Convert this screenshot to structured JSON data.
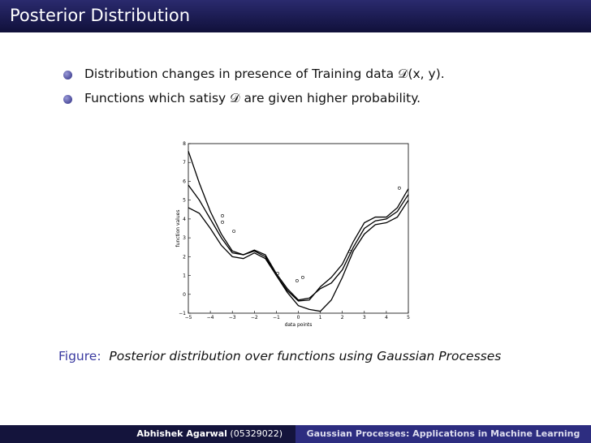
{
  "header": {
    "title": "Posterior Distribution"
  },
  "bullets": [
    "Distribution changes in presence of Training data 𝒟(x, y).",
    "Functions which satisy 𝒟 are given higher probability."
  ],
  "figure": {
    "chart": {
      "type": "line",
      "x_label": "data points",
      "y_label": "function values",
      "x": [
        -5,
        -4.5,
        -4,
        -3.5,
        -3,
        -2.5,
        -2,
        -1.5,
        -1,
        -0.5,
        0,
        0.5,
        1,
        1.5,
        2,
        2.5,
        3,
        3.5,
        4,
        4.5,
        5
      ],
      "series": [
        {
          "color": "#000000",
          "values": [
            7.6,
            5.9,
            4.4,
            3.2,
            2.3,
            2.1,
            2.3,
            2.0,
            1.0,
            0.1,
            -0.6,
            -0.8,
            -0.9,
            -0.3,
            0.9,
            2.3,
            3.2,
            3.7,
            3.8,
            4.1,
            5.0
          ]
        },
        {
          "color": "#000000",
          "values": [
            5.8,
            5.0,
            4.0,
            3.0,
            2.2,
            2.1,
            2.35,
            2.1,
            1.1,
            0.3,
            -0.3,
            -0.2,
            0.3,
            0.6,
            1.3,
            2.5,
            3.5,
            3.9,
            4.0,
            4.4,
            5.3
          ]
        },
        {
          "color": "#000000",
          "values": [
            4.6,
            4.3,
            3.5,
            2.6,
            2.0,
            1.9,
            2.2,
            1.9,
            1.0,
            0.2,
            -0.35,
            -0.3,
            0.4,
            0.9,
            1.6,
            2.8,
            3.8,
            4.1,
            4.1,
            4.6,
            5.6
          ]
        }
      ],
      "points": {
        "color": "#000000",
        "x": [
          -3.45,
          -3.45,
          -2.93,
          -0.94,
          -0.06,
          0.2,
          2.34,
          4.59
        ],
        "y": [
          4.17,
          3.83,
          3.35,
          1.11,
          0.72,
          0.9,
          2.28,
          5.64
        ]
      },
      "xlim": [
        -5,
        5
      ],
      "ylim": [
        -1,
        8
      ],
      "xticks": [
        {
          "value": -5,
          "label": "−5"
        },
        {
          "value": -4,
          "label": "−4"
        },
        {
          "value": -3,
          "label": "−3"
        },
        {
          "value": -2,
          "label": "−2"
        },
        {
          "value": -1,
          "label": "−1"
        },
        0,
        1,
        2,
        3,
        4,
        5
      ],
      "yticks": [
        {
          "value": -1,
          "label": "−1"
        },
        0,
        1,
        2,
        3,
        4,
        5,
        6,
        7,
        8
      ]
    },
    "caption": {
      "label": "Figure:",
      "text": "Posterior distribution over functions using Gaussian Processes"
    }
  },
  "footer": {
    "author": "Abhishek Agarwal",
    "id": "(05329022)",
    "talk_title": "Gaussian Processes: Applications in Machine Learning"
  }
}
